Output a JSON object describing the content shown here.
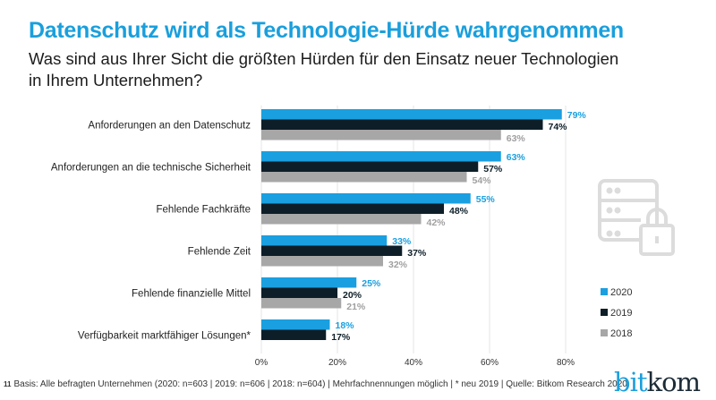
{
  "title": "Datenschutz wird als Technologie-Hürde wahrgenommen",
  "subtitle": "Was sind aus Ihrer Sicht die größten Hürden für den Einsatz neuer Technologien in Ihrem Unternehmen?",
  "footer": {
    "page": "11",
    "text": "Basis: Alle befragten Unternehmen (2020:  n=603 | 2019: n=606 | 2018: n=604) | Mehrfachnennungen möglich | * neu 2019 | Quelle: Bitkom Research 2020"
  },
  "logo": {
    "part1": "bit",
    "part2": "kom"
  },
  "icon": "server-lock-icon",
  "chart_data": {
    "type": "bar",
    "orientation": "horizontal",
    "categories": [
      "Anforderungen an den Datenschutz",
      "Anforderungen an die technische Sicherheit",
      "Fehlende Fachkräfte",
      "Fehlende Zeit",
      "Fehlende finanzielle Mittel",
      "Verfügbarkeit marktfähiger Lösungen*"
    ],
    "series": [
      {
        "name": "2020",
        "color": "#1a9fe0",
        "values": [
          79,
          63,
          55,
          33,
          25,
          18
        ]
      },
      {
        "name": "2019",
        "color": "#0d1e28",
        "values": [
          74,
          57,
          48,
          37,
          20,
          17
        ]
      },
      {
        "name": "2018",
        "color": "#a7a7a7",
        "values": [
          63,
          54,
          42,
          32,
          21,
          null
        ]
      }
    ],
    "xlim": [
      0,
      80
    ],
    "xticks": [
      "0%",
      "20%",
      "40%",
      "60%",
      "80%"
    ],
    "grid": true,
    "legend": "right"
  }
}
